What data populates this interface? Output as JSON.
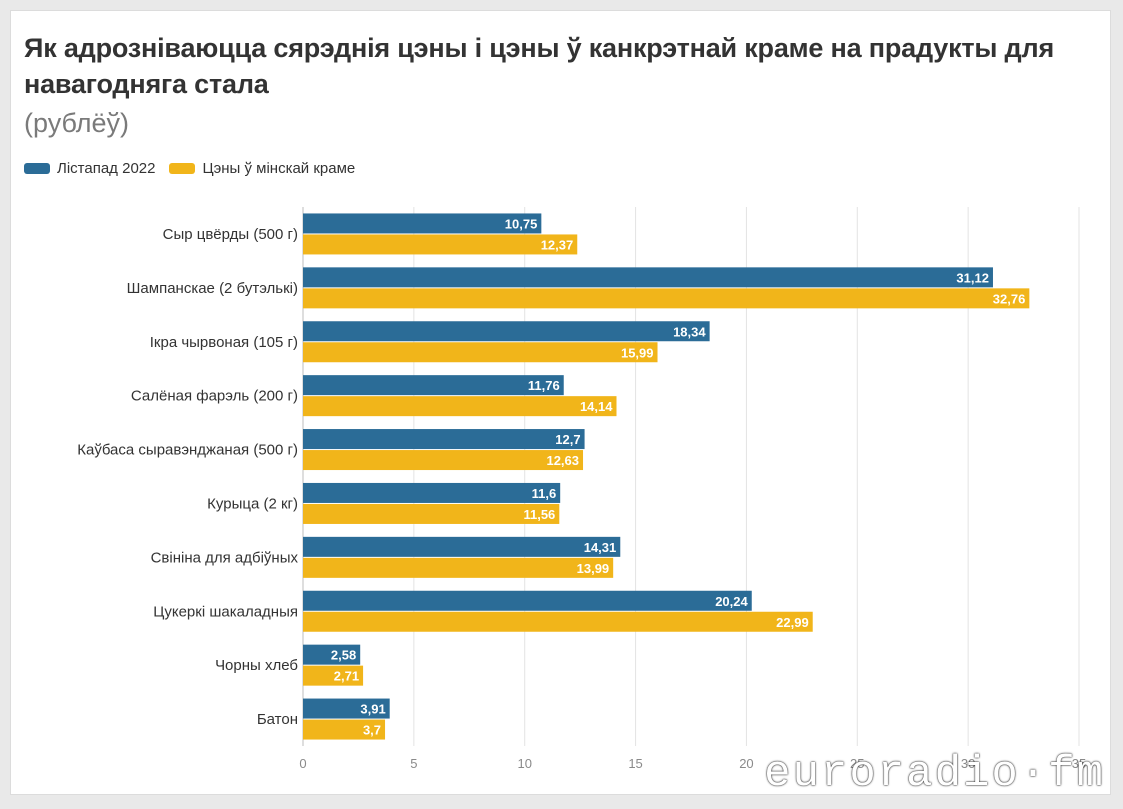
{
  "header": {
    "title": "Як адрозніваюцца сярэднія цэны і цэны ў канкрэтнай краме на прадукты для навагодняга стала",
    "subtitle": "(рублёў)"
  },
  "watermark": "euroradio·fm",
  "colors": {
    "series1": "#2b6c97",
    "series2": "#f1b51a",
    "grid": "#e3e3e3"
  },
  "chart_data": {
    "type": "bar",
    "orientation": "horizontal",
    "categories": [
      "Сыр цвёрды (500 г)",
      "Шампанскае (2 бутэлькі)",
      "Ікра чырвоная  (105 г)",
      "Салёная фарэль (200 г)",
      "Каўбаса сыравэнджаная (500 г)",
      "Курыца (2 кг)",
      "Свініна для адбіўных",
      "Цукеркі шакаладныя",
      "Чорны хлеб",
      "Батон"
    ],
    "series": [
      {
        "name": "Лістапад 2022",
        "values": [
          10.75,
          31.12,
          18.34,
          11.76,
          12.7,
          11.6,
          14.31,
          20.24,
          2.58,
          3.91
        ],
        "labels": [
          "10,75",
          "31,12",
          "18,34",
          "11,76",
          "12,7",
          "11,6",
          "14,31",
          "20,24",
          "2,58",
          "3,91"
        ]
      },
      {
        "name": "Цэны ў мінскай краме",
        "values": [
          12.37,
          32.76,
          15.99,
          14.14,
          12.63,
          11.56,
          13.99,
          22.99,
          2.71,
          3.7
        ],
        "labels": [
          "12,37",
          "32,76",
          "15,99",
          "14,14",
          "12,63",
          "11,56",
          "13,99",
          "22,99",
          "2,71",
          "3,7"
        ]
      }
    ],
    "xlim": [
      0,
      35
    ],
    "xticks": [
      0,
      5,
      10,
      15,
      20,
      25,
      30,
      35
    ],
    "grid": true,
    "legend_position": "top-left"
  }
}
